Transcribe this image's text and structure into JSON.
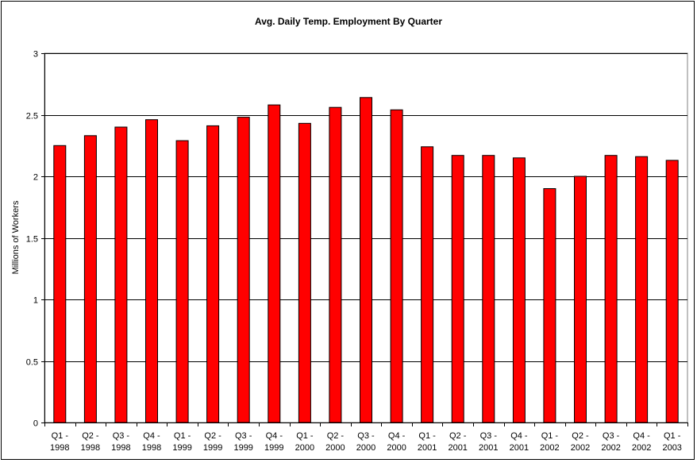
{
  "chart_data": {
    "type": "bar",
    "title": "Avg. Daily Temp. Employment By Quarter",
    "xlabel": "",
    "ylabel": "Millions of Workers",
    "ylim": [
      0,
      3
    ],
    "yticks": [
      "0",
      "0.5",
      "1",
      "1.5",
      "2",
      "2.5",
      "3"
    ],
    "grid": true,
    "legend": "none",
    "bar_color": "#ff0000",
    "categories": [
      [
        "Q1 -",
        "1998"
      ],
      [
        "Q2 -",
        "1998"
      ],
      [
        "Q3 -",
        "1998"
      ],
      [
        "Q4 -",
        "1998"
      ],
      [
        "Q1 -",
        "1999"
      ],
      [
        "Q2 -",
        "1999"
      ],
      [
        "Q3 -",
        "1999"
      ],
      [
        "Q4 -",
        "1999"
      ],
      [
        "Q1 -",
        "2000"
      ],
      [
        "Q2 -",
        "2000"
      ],
      [
        "Q3 -",
        "2000"
      ],
      [
        "Q4 -",
        "2000"
      ],
      [
        "Q1 -",
        "2001"
      ],
      [
        "Q2 -",
        "2001"
      ],
      [
        "Q3 -",
        "2001"
      ],
      [
        "Q4 -",
        "2001"
      ],
      [
        "Q1 -",
        "2002"
      ],
      [
        "Q2 -",
        "2002"
      ],
      [
        "Q3 -",
        "2002"
      ],
      [
        "Q4 -",
        "2002"
      ],
      [
        "Q1 -",
        "2003"
      ]
    ],
    "values": [
      2.25,
      2.33,
      2.4,
      2.46,
      2.29,
      2.41,
      2.48,
      2.58,
      2.43,
      2.56,
      2.64,
      2.54,
      2.24,
      2.17,
      2.17,
      2.15,
      1.9,
      2.0,
      2.17,
      2.16,
      2.13
    ]
  }
}
